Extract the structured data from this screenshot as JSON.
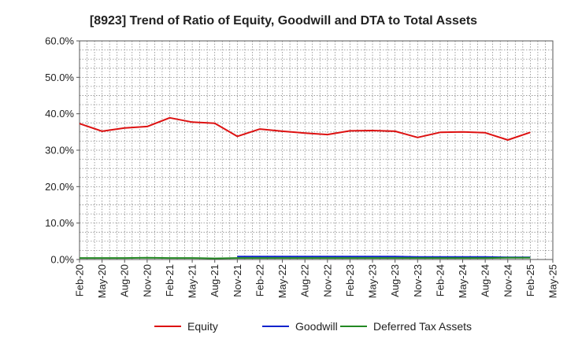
{
  "chart_data": {
    "type": "line",
    "title": "[8923]  Trend of Ratio of Equity, Goodwill and DTA to Total Assets",
    "xlabel": "",
    "ylabel": "",
    "ylim": [
      0,
      60
    ],
    "y_ticks": [
      0,
      10,
      20,
      30,
      40,
      50,
      60
    ],
    "y_tick_labels": [
      "0.0%",
      "10.0%",
      "20.0%",
      "30.0%",
      "40.0%",
      "50.0%",
      "60.0%"
    ],
    "x_tick_labels": [
      "Feb-20",
      "May-20",
      "Aug-20",
      "Nov-20",
      "Feb-21",
      "May-21",
      "Aug-21",
      "Nov-21",
      "Feb-22",
      "May-22",
      "Aug-22",
      "Nov-22",
      "Feb-23",
      "May-23",
      "Aug-23",
      "Nov-23",
      "Feb-24",
      "May-24",
      "Aug-24",
      "Nov-24",
      "Feb-25",
      "May-25"
    ],
    "grid": true,
    "legend_position": "bottom",
    "series": [
      {
        "name": "Equity",
        "color": "#dd1111",
        "values": [
          37.3,
          35.2,
          36.1,
          36.5,
          38.9,
          37.7,
          37.4,
          33.8,
          35.8,
          35.2,
          34.7,
          34.3,
          35.3,
          35.4,
          35.2,
          33.5,
          34.9,
          35.0,
          34.8,
          32.8,
          34.9,
          null
        ]
      },
      {
        "name": "Goodwill",
        "color": "#1122cc",
        "values": [
          null,
          null,
          null,
          null,
          null,
          null,
          null,
          0.8,
          0.8,
          0.8,
          0.8,
          0.8,
          0.8,
          0.8,
          0.8,
          0.7,
          0.7,
          0.7,
          0.7,
          0.6,
          0.6,
          null
        ]
      },
      {
        "name": "Deferred Tax Assets",
        "color": "#228822",
        "values": [
          0.4,
          0.4,
          0.4,
          0.5,
          0.4,
          0.4,
          0.3,
          0.4,
          0.4,
          0.4,
          0.4,
          0.4,
          0.4,
          0.4,
          0.4,
          0.4,
          0.4,
          0.4,
          0.4,
          0.5,
          0.5,
          null
        ]
      }
    ]
  }
}
